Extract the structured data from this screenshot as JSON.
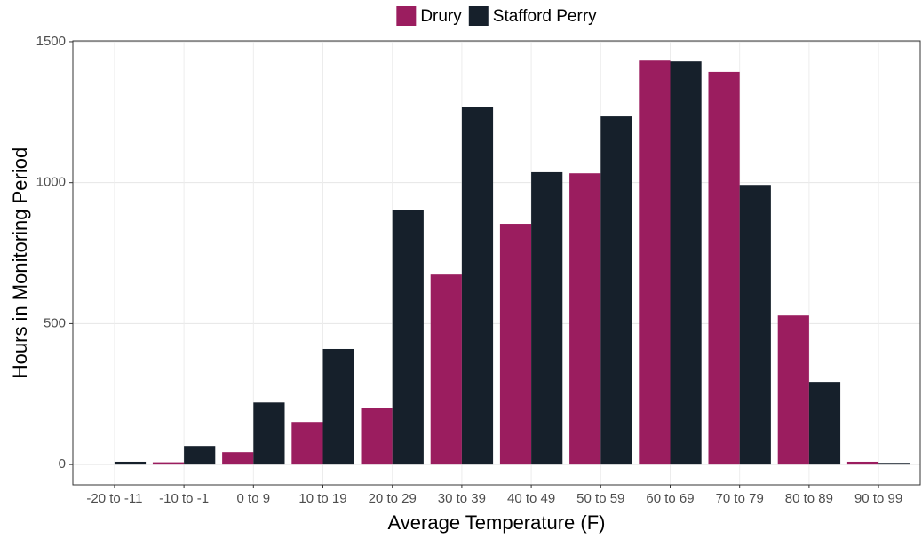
{
  "chart_data": {
    "type": "bar",
    "x_label": "Average Temperature (F)",
    "y_label": "Hours in Monitoring Period",
    "categories": [
      "-20 to -11",
      "-10 to -1",
      "0 to 9",
      "10 to 19",
      "20 to 29",
      "30 to 39",
      "40 to 49",
      "50 to 59",
      "60 to 69",
      "70 to 79",
      "80 to 89",
      "90 to 99"
    ],
    "series": [
      {
        "name": "Drury",
        "color": "#9b1d5f",
        "values": [
          0,
          8,
          44,
          151,
          199,
          674,
          854,
          1033,
          1433,
          1393,
          529,
          10
        ]
      },
      {
        "name": "Stafford Perry",
        "color": "#16202b",
        "values": [
          10,
          66,
          220,
          410,
          904,
          1267,
          1037,
          1235,
          1430,
          992,
          293,
          6
        ]
      }
    ],
    "ylim": [
      -72,
      1503
    ],
    "yticks": [
      0,
      500,
      1000,
      1500
    ],
    "grid": true,
    "legend": "top"
  }
}
